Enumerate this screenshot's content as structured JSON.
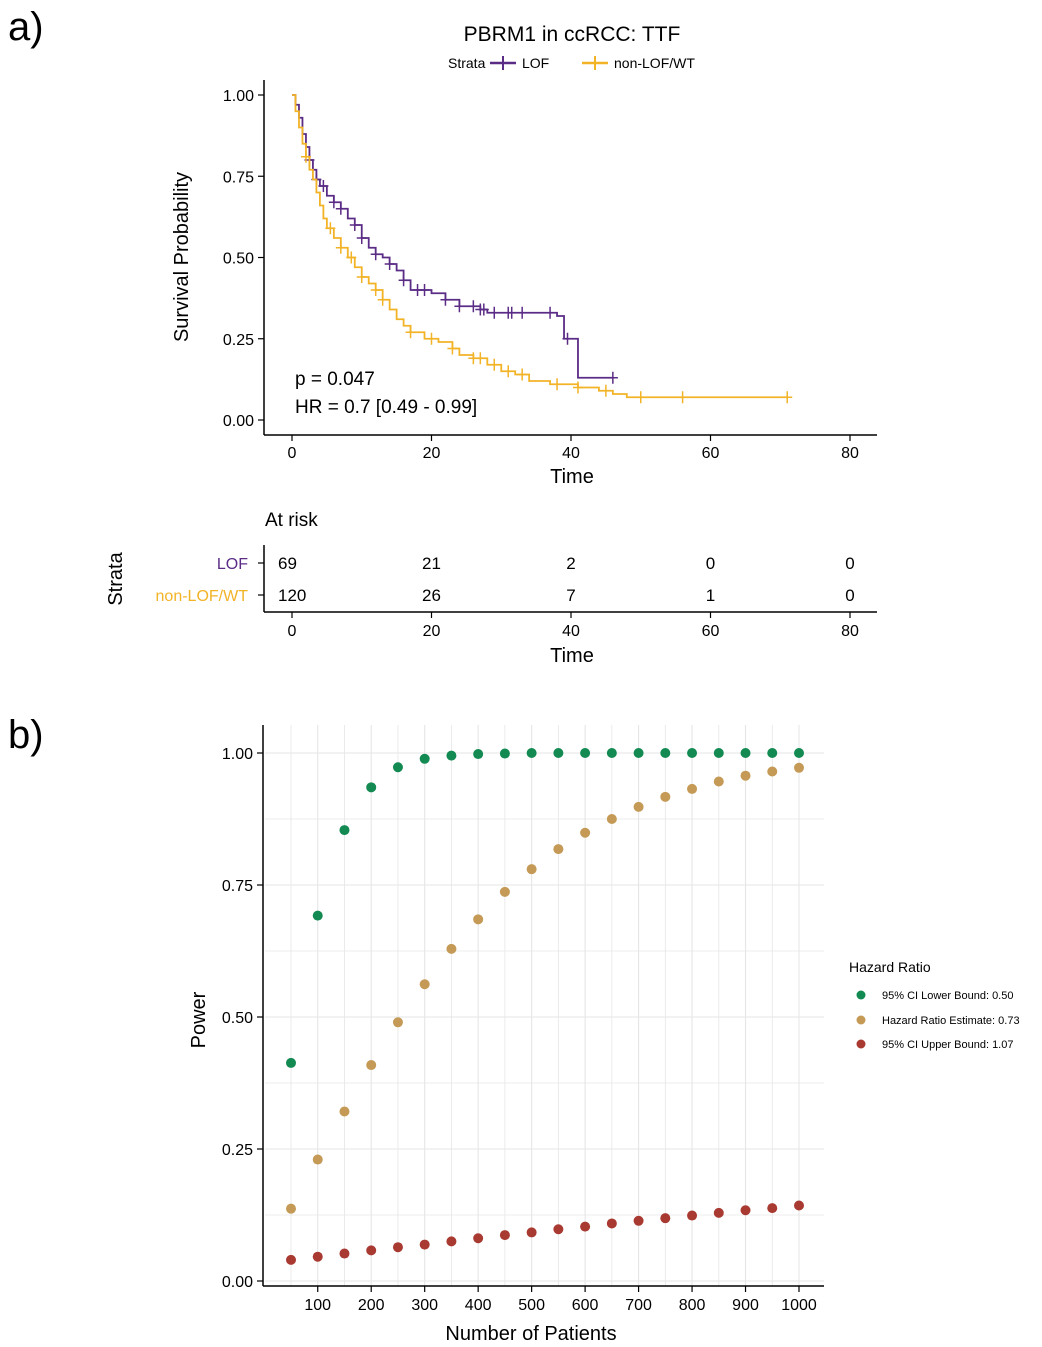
{
  "panel_labels": {
    "a": "a)",
    "b": "b)"
  },
  "colors": {
    "lof": "#5B2C86",
    "nonlof": "#F2B327",
    "green": "#138A52",
    "tan": "#C49A56",
    "red": "#A83A32",
    "grid": "#e6e6e6"
  },
  "chart_data": [
    {
      "type": "line",
      "title": "PBRM1 in ccRCC: TTF",
      "xlabel": "Time",
      "ylabel": "Survival Probability",
      "xlim": [
        0,
        80
      ],
      "ylim": [
        0,
        1
      ],
      "x_ticks": [
        "0",
        "20",
        "40",
        "60",
        "80"
      ],
      "y_ticks": [
        "0.00",
        "0.25",
        "0.50",
        "0.75",
        "1.00"
      ],
      "legend": {
        "title": "Strata",
        "position": "top"
      },
      "annotations": {
        "p": "p = 0.047",
        "hr": "HR = 0.7 [0.49 - 0.99]"
      },
      "series": [
        {
          "name": "LOF",
          "color_key": "lof",
          "steps": [
            [
              0,
              1.0
            ],
            [
              0.5,
              0.97
            ],
            [
              1.0,
              0.93
            ],
            [
              1.5,
              0.88
            ],
            [
              2.0,
              0.84
            ],
            [
              2.5,
              0.8
            ],
            [
              3.0,
              0.77
            ],
            [
              3.5,
              0.74
            ],
            [
              4.0,
              0.72
            ],
            [
              5.0,
              0.69
            ],
            [
              6.0,
              0.67
            ],
            [
              7.0,
              0.65
            ],
            [
              8.0,
              0.62
            ],
            [
              9.0,
              0.6
            ],
            [
              10.0,
              0.56
            ],
            [
              11.0,
              0.53
            ],
            [
              12.0,
              0.51
            ],
            [
              13.0,
              0.5
            ],
            [
              14.0,
              0.48
            ],
            [
              15.0,
              0.46
            ],
            [
              16.0,
              0.43
            ],
            [
              17.0,
              0.4
            ],
            [
              20.0,
              0.39
            ],
            [
              22.0,
              0.37
            ],
            [
              24.0,
              0.35
            ],
            [
              27.0,
              0.34
            ],
            [
              28.0,
              0.33
            ],
            [
              38.0,
              0.32
            ],
            [
              39.0,
              0.25
            ],
            [
              40.5,
              0.25
            ],
            [
              41.0,
              0.13
            ],
            [
              46.0,
              0.13
            ]
          ],
          "censor_times": [
            2.5,
            3.5,
            4.5,
            6,
            7,
            9,
            10,
            12,
            14,
            16,
            18,
            19,
            22,
            24,
            26,
            27,
            27.5,
            29,
            31,
            31.5,
            33,
            37,
            39.5,
            46
          ]
        },
        {
          "name": "non-LOF/WT",
          "color_key": "nonlof",
          "steps": [
            [
              0,
              1.0
            ],
            [
              0.5,
              0.95
            ],
            [
              1.0,
              0.9
            ],
            [
              1.5,
              0.85
            ],
            [
              2.0,
              0.81
            ],
            [
              2.5,
              0.77
            ],
            [
              3.0,
              0.74
            ],
            [
              3.5,
              0.7
            ],
            [
              4.0,
              0.66
            ],
            [
              4.5,
              0.62
            ],
            [
              5.0,
              0.59
            ],
            [
              6.0,
              0.56
            ],
            [
              7.0,
              0.53
            ],
            [
              8.0,
              0.5
            ],
            [
              9.0,
              0.47
            ],
            [
              10.0,
              0.44
            ],
            [
              11.0,
              0.42
            ],
            [
              12.0,
              0.4
            ],
            [
              13.0,
              0.37
            ],
            [
              14.0,
              0.34
            ],
            [
              15.0,
              0.31
            ],
            [
              16.0,
              0.29
            ],
            [
              17.0,
              0.27
            ],
            [
              19.0,
              0.25
            ],
            [
              21.0,
              0.24
            ],
            [
              23.0,
              0.22
            ],
            [
              24.0,
              0.2
            ],
            [
              26.0,
              0.19
            ],
            [
              28.0,
              0.17
            ],
            [
              30.0,
              0.15
            ],
            [
              32.0,
              0.14
            ],
            [
              34.0,
              0.12
            ],
            [
              37.0,
              0.11
            ],
            [
              41.0,
              0.1
            ],
            [
              44.0,
              0.09
            ],
            [
              46.0,
              0.08
            ],
            [
              48.0,
              0.07
            ],
            [
              71.0,
              0.07
            ]
          ],
          "censor_times": [
            2,
            5.5,
            7,
            8.5,
            10,
            12,
            13,
            17,
            20,
            23,
            26,
            27,
            29,
            31,
            33,
            38,
            41,
            45,
            50,
            56,
            71
          ]
        }
      ]
    },
    {
      "type": "table",
      "title": "At risk",
      "xlabel": "Time",
      "ylabel": "Strata",
      "x_ticks": [
        "0",
        "20",
        "40",
        "60",
        "80"
      ],
      "rows": [
        {
          "label": "LOF",
          "color_key": "lof",
          "values": [
            "69",
            "21",
            "2",
            "0",
            "0"
          ]
        },
        {
          "label": "non-LOF/WT",
          "color_key": "nonlof",
          "values": [
            "120",
            "26",
            "7",
            "1",
            "0"
          ]
        }
      ]
    },
    {
      "type": "scatter",
      "xlabel": "Number of Patients",
      "ylabel": "Power",
      "xlim": [
        0,
        1000
      ],
      "ylim": [
        0,
        1
      ],
      "x_ticks": [
        "100",
        "200",
        "300",
        "400",
        "500",
        "600",
        "700",
        "800",
        "900",
        "1000"
      ],
      "y_ticks": [
        "0.00",
        "0.25",
        "0.50",
        "0.75",
        "1.00"
      ],
      "legend": {
        "title": "Hazard Ratio",
        "position": "right"
      },
      "x": [
        50,
        100,
        150,
        200,
        250,
        300,
        350,
        400,
        450,
        500,
        550,
        600,
        650,
        700,
        750,
        800,
        850,
        900,
        950,
        1000
      ],
      "series": [
        {
          "name": "95% CI Lower Bound: 0.50",
          "color_key": "green",
          "values": [
            0.413,
            0.692,
            0.854,
            0.935,
            0.973,
            0.989,
            0.995,
            0.998,
            0.999,
            1.0,
            1.0,
            1.0,
            1.0,
            1.0,
            1.0,
            1.0,
            1.0,
            1.0,
            1.0,
            1.0
          ]
        },
        {
          "name": "Hazard Ratio Estimate: 0.73",
          "color_key": "tan",
          "values": [
            0.137,
            0.23,
            0.321,
            0.409,
            0.49,
            0.562,
            0.629,
            0.685,
            0.737,
            0.78,
            0.818,
            0.849,
            0.875,
            0.898,
            0.917,
            0.932,
            0.946,
            0.957,
            0.965,
            0.972
          ]
        },
        {
          "name": "95% CI Upper Bound: 1.07",
          "color_key": "red",
          "values": [
            0.04,
            0.046,
            0.052,
            0.058,
            0.064,
            0.069,
            0.075,
            0.081,
            0.087,
            0.092,
            0.098,
            0.103,
            0.109,
            0.114,
            0.119,
            0.124,
            0.129,
            0.134,
            0.138,
            0.143
          ]
        }
      ]
    }
  ]
}
